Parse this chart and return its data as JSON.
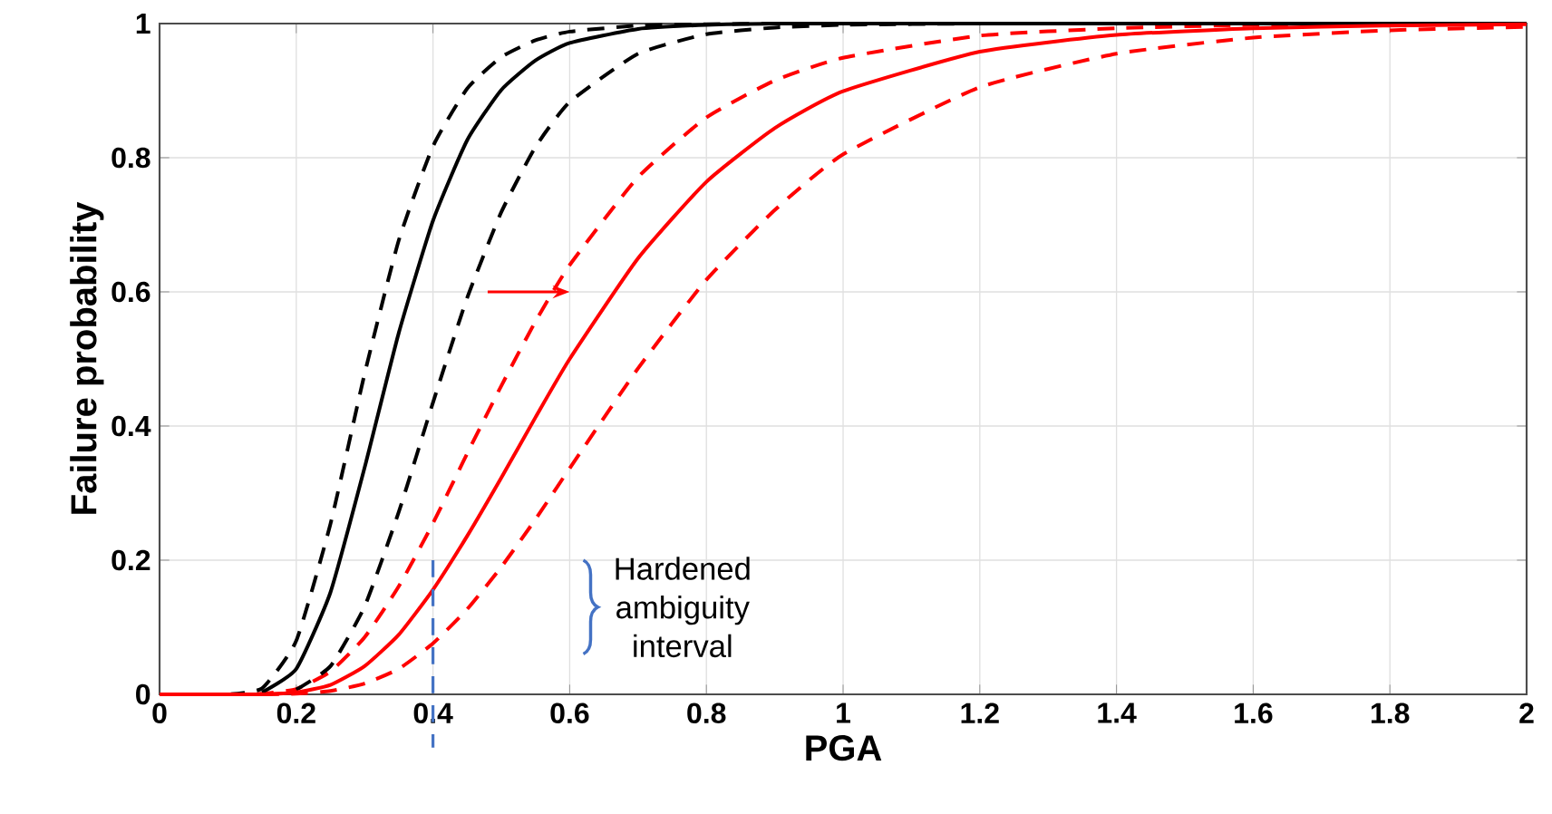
{
  "chart_data": {
    "type": "line",
    "xlabel": "PGA",
    "ylabel": "Failure probability",
    "x": [
      0,
      0.1,
      0.15,
      0.2,
      0.25,
      0.3,
      0.35,
      0.4,
      0.45,
      0.5,
      0.55,
      0.6,
      0.7,
      0.8,
      0.9,
      1.0,
      1.2,
      1.4,
      1.6,
      1.8,
      2.0
    ],
    "series": [
      {
        "color": "#000000",
        "line_style": "dashed",
        "x": [
          0.1,
          0.15,
          0.2,
          0.25,
          0.3,
          0.35,
          0.4,
          0.45,
          0.5,
          0.55,
          0.6,
          0.7,
          0.8,
          0.9,
          1.0,
          1.2,
          1.4,
          1.6,
          1.8,
          2.0
        ],
        "values": [
          0,
          0.009,
          0.08,
          0.254,
          0.478,
          0.677,
          0.817,
          0.903,
          0.95,
          0.975,
          0.988,
          0.997,
          0.999,
          1,
          1,
          1,
          1,
          1,
          1,
          1
        ]
      },
      {
        "color": "#000000",
        "line_style": "solid",
        "x": [
          0.15,
          0.2,
          0.25,
          0.3,
          0.35,
          0.4,
          0.45,
          0.5,
          0.55,
          0.6,
          0.7,
          0.8,
          0.9,
          1.0,
          1.2,
          1.4,
          1.6,
          1.8,
          2.0
        ],
        "values": [
          0.003,
          0.038,
          0.152,
          0.338,
          0.539,
          0.706,
          0.826,
          0.901,
          0.945,
          0.971,
          0.992,
          0.998,
          1,
          1,
          1,
          1,
          1,
          1,
          1
        ]
      },
      {
        "color": "#000000",
        "line_style": "dashed",
        "x": [
          0.2,
          0.25,
          0.3,
          0.35,
          0.4,
          0.45,
          0.5,
          0.55,
          0.6,
          0.7,
          0.8,
          0.9,
          1.0,
          1.2,
          1.4,
          1.6,
          1.8,
          2.0
        ],
        "values": [
          0.007,
          0.042,
          0.131,
          0.272,
          0.435,
          0.591,
          0.719,
          0.816,
          0.883,
          0.955,
          0.984,
          0.994,
          0.998,
          1,
          1,
          1,
          1,
          1
        ]
      },
      {
        "color": "#ff0000",
        "line_style": "dashed",
        "x": [
          0.1,
          0.15,
          0.2,
          0.25,
          0.3,
          0.35,
          0.4,
          0.45,
          0.5,
          0.55,
          0.6,
          0.7,
          0.8,
          0.9,
          1.0,
          1.2,
          1.4,
          1.6,
          1.8,
          2.0
        ],
        "values": [
          0,
          0.001,
          0.008,
          0.034,
          0.085,
          0.161,
          0.255,
          0.359,
          0.46,
          0.556,
          0.64,
          0.771,
          0.86,
          0.915,
          0.949,
          0.982,
          0.993,
          0.998,
          0.999,
          1
        ]
      },
      {
        "color": "#ff0000",
        "line_style": "solid",
        "values": [
          0,
          0,
          0,
          0.003,
          0.014,
          0.042,
          0.089,
          0.156,
          0.236,
          0.323,
          0.413,
          0.5,
          0.65,
          0.764,
          0.844,
          0.899,
          0.958,
          0.983,
          0.993,
          0.997,
          0.999
        ]
      },
      {
        "color": "#ff0000",
        "line_style": "dashed",
        "x": [
          0.15,
          0.2,
          0.25,
          0.3,
          0.35,
          0.4,
          0.45,
          0.5,
          0.55,
          0.6,
          0.7,
          0.8,
          0.9,
          1.0,
          1.2,
          1.4,
          1.6,
          1.8,
          2.0
        ],
        "values": [
          0,
          0.001,
          0.005,
          0.016,
          0.038,
          0.076,
          0.127,
          0.19,
          0.261,
          0.337,
          0.486,
          0.618,
          0.722,
          0.805,
          0.905,
          0.955,
          0.979,
          0.99,
          0.995
        ]
      }
    ],
    "xlim": [
      0,
      2
    ],
    "ylim": [
      0,
      1
    ],
    "xticks": [
      0,
      0.2,
      0.4,
      0.6,
      0.8,
      1,
      1.2,
      1.4,
      1.6,
      1.8,
      2
    ],
    "yticks": [
      0,
      0.2,
      0.4,
      0.6,
      0.8,
      1
    ],
    "grid": true,
    "marker": "none",
    "ref_lines": [
      {
        "axis": "x",
        "value": 0.4,
        "color": "#4472c4",
        "line_style": "dashed"
      }
    ],
    "annotations": [
      "Hardened ambiguity interval"
    ]
  }
}
